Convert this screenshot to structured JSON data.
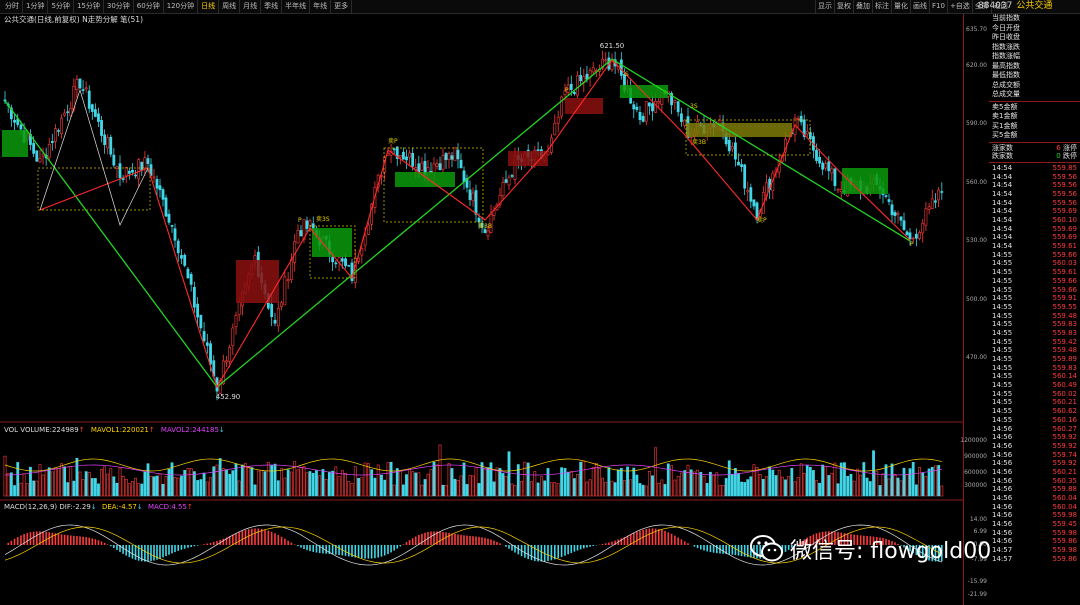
{
  "toolbar": {
    "periods": [
      "分时",
      "1分钟",
      "5分钟",
      "15分钟",
      "30分钟",
      "60分钟",
      "120分钟",
      "日线",
      "周线",
      "月线",
      "季线",
      "半年线",
      "年线",
      "更多"
    ],
    "active_period": "日线",
    "tools": [
      "显示",
      "复权",
      "叠加",
      "标注",
      "量化",
      "画线",
      "F10",
      "+自选",
      "全屏",
      "返回"
    ],
    "code": "884037",
    "name": "公共交通"
  },
  "chart_title": "公共交通(日线,前复权) N走势分解 笔(51)",
  "price_axis": [
    "635.70",
    "620.00",
    "590.00",
    "560.00",
    "530.00",
    "500.00",
    "470.00"
  ],
  "annotations": {
    "high": "621.50",
    "low": "452.90",
    "labels": [
      "卖B",
      "卖3S",
      "卖3B",
      "卖P",
      "买P",
      "买3B",
      "3S",
      "P",
      "S",
      "B"
    ]
  },
  "volume_panel": {
    "label": "VOL VOLUME:224989",
    "mavol1": "MAVOL1:220021",
    "mavol2": "MAVOL2:244185",
    "ticks": [
      "1200000",
      "900000",
      "600000",
      "300000"
    ]
  },
  "macd_panel": {
    "label": "MACD(12,26,9)",
    "dif": "DIF:-2.29",
    "dea": "DEA:-4.57",
    "macd": "MACD:4.55",
    "ticks": [
      "14.00",
      "6.99",
      "0.00",
      "-7.99",
      "-15.99",
      "-21.99"
    ]
  },
  "quote_panel": {
    "labels": [
      "当前指数",
      "今日开盘",
      "昨日收盘",
      "指数涨跌",
      "指数涨幅",
      "最高指数",
      "最低指数",
      "总成交额",
      "总成交量"
    ],
    "order_labels": [
      "卖5金额",
      "卖1金额",
      "买1金额",
      "买5金额"
    ],
    "up_label": "涨家数",
    "up_count": "6",
    "up_tag": "涨停",
    "down_label": "跌家数",
    "down_count": "0",
    "down_tag": "跌停"
  },
  "ticks": [
    [
      "14:54",
      "559.85"
    ],
    [
      "14:54",
      "559.56"
    ],
    [
      "14:54",
      "559.56"
    ],
    [
      "14:54",
      "559.56"
    ],
    [
      "14:54",
      "559.56"
    ],
    [
      "14:54",
      "559.69"
    ],
    [
      "14:54",
      "560.10"
    ],
    [
      "14:54",
      "559.69"
    ],
    [
      "14:54",
      "559.69"
    ],
    [
      "14:54",
      "559.61"
    ],
    [
      "14:55",
      "559.66"
    ],
    [
      "14:55",
      "560.03"
    ],
    [
      "14:55",
      "559.61"
    ],
    [
      "14:55",
      "559.66"
    ],
    [
      "14:55",
      "559.66"
    ],
    [
      "14:55",
      "559.91"
    ],
    [
      "14:55",
      "559.55"
    ],
    [
      "14:55",
      "559.48"
    ],
    [
      "14:55",
      "559.83"
    ],
    [
      "14:55",
      "559.83"
    ],
    [
      "14:55",
      "559.42"
    ],
    [
      "14:55",
      "559.48"
    ],
    [
      "14:55",
      "559.89"
    ],
    [
      "14:55",
      "559.83"
    ],
    [
      "14:55",
      "560.14"
    ],
    [
      "14:55",
      "560.49"
    ],
    [
      "14:55",
      "560.02"
    ],
    [
      "14:55",
      "560.21"
    ],
    [
      "14:55",
      "560.62"
    ],
    [
      "14:55",
      "560.16"
    ],
    [
      "14:56",
      "560.27"
    ],
    [
      "14:56",
      "559.92"
    ],
    [
      "14:56",
      "559.92"
    ],
    [
      "14:56",
      "559.74"
    ],
    [
      "14:56",
      "559.92"
    ],
    [
      "14:56",
      "560.21"
    ],
    [
      "14:56",
      "560.35"
    ],
    [
      "14:56",
      "559.88"
    ],
    [
      "14:56",
      "560.04"
    ],
    [
      "14:56",
      "560.04"
    ],
    [
      "14:56",
      "559.98"
    ],
    [
      "14:56",
      "559.45"
    ],
    [
      "14:56",
      "559.98"
    ],
    [
      "14:56",
      "559.86"
    ],
    [
      "14:57",
      "559.98"
    ],
    [
      "14:57",
      "559.86"
    ]
  ],
  "watermark": "微信号: flowgold00",
  "colors": {
    "up": "#ff3b3b",
    "down": "#41d7e8",
    "zigzag_green": "#22d622",
    "zigzag_red": "#ff2a2a",
    "box_green": "#0a9a0a",
    "box_red": "#8b1010",
    "box_yellow": "#7d7a08"
  }
}
